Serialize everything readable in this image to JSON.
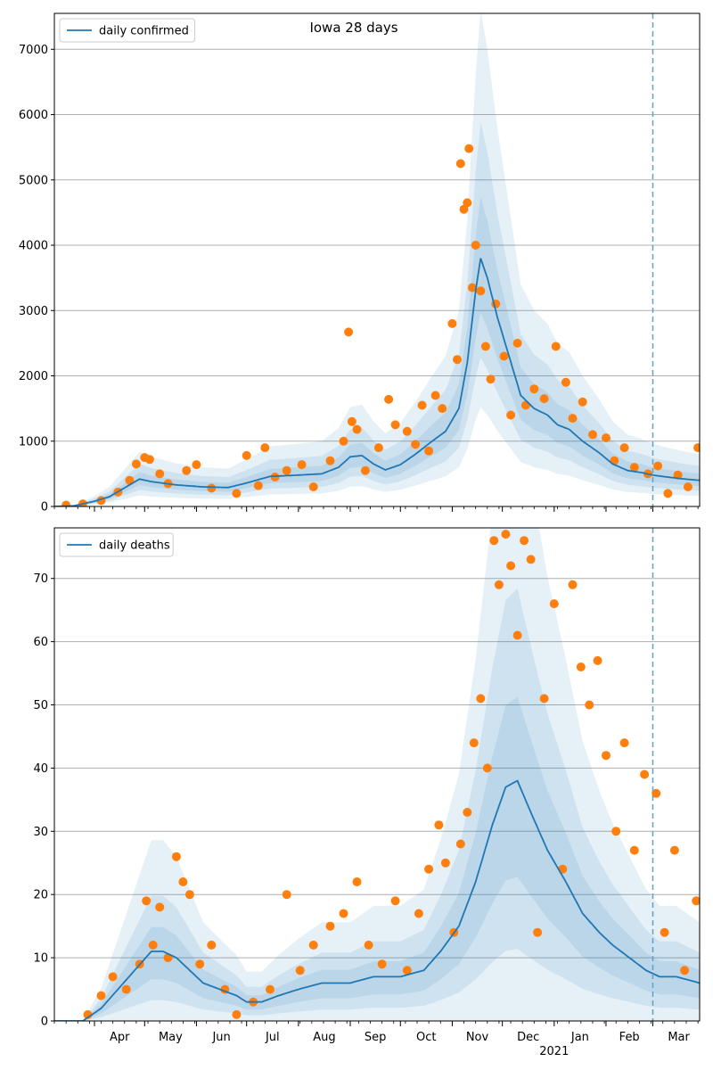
{
  "chart_data": [
    {
      "type": "line",
      "title": "Iowa 28 days",
      "legend": {
        "entries": [
          "daily confirmed"
        ],
        "placement": "top-left"
      },
      "ylim": [
        0,
        7550
      ],
      "yticks": [
        0,
        1000,
        2000,
        3000,
        4000,
        5000,
        6000,
        7000
      ],
      "grid": "horizontal",
      "forecast_start": "2021-03-01",
      "colors": {
        "line": "#1f77b4",
        "points": "#ff7f0e",
        "band": "#1f77b4",
        "vline": "#5fa2c9"
      },
      "series": [
        {
          "name": "daily confirmed",
          "anchors": [
            [
              "2020-03-08",
              0
            ],
            [
              "2020-03-20",
              10
            ],
            [
              "2020-04-01",
              80
            ],
            [
              "2020-04-10",
              150
            ],
            [
              "2020-04-20",
              300
            ],
            [
              "2020-04-28",
              420
            ],
            [
              "2020-05-05",
              380
            ],
            [
              "2020-05-20",
              330
            ],
            [
              "2020-06-05",
              300
            ],
            [
              "2020-06-20",
              290
            ],
            [
              "2020-07-01",
              360
            ],
            [
              "2020-07-15",
              460
            ],
            [
              "2020-08-01",
              480
            ],
            [
              "2020-08-15",
              500
            ],
            [
              "2020-08-25",
              600
            ],
            [
              "2020-09-01",
              760
            ],
            [
              "2020-09-08",
              780
            ],
            [
              "2020-09-15",
              650
            ],
            [
              "2020-09-22",
              560
            ],
            [
              "2020-10-01",
              640
            ],
            [
              "2020-10-10",
              800
            ],
            [
              "2020-10-20",
              1000
            ],
            [
              "2020-10-28",
              1150
            ],
            [
              "2020-11-05",
              1500
            ],
            [
              "2020-11-10",
              2200
            ],
            [
              "2020-11-15",
              3300
            ],
            [
              "2020-11-18",
              3800
            ],
            [
              "2020-11-22",
              3500
            ],
            [
              "2020-11-28",
              2900
            ],
            [
              "2020-12-05",
              2300
            ],
            [
              "2020-12-12",
              1700
            ],
            [
              "2020-12-20",
              1500
            ],
            [
              "2020-12-28",
              1400
            ],
            [
              "2021-01-03",
              1250
            ],
            [
              "2021-01-10",
              1180
            ],
            [
              "2021-01-18",
              1000
            ],
            [
              "2021-01-28",
              820
            ],
            [
              "2021-02-05",
              650
            ],
            [
              "2021-02-14",
              550
            ],
            [
              "2021-02-22",
              520
            ],
            [
              "2021-03-01",
              480
            ],
            [
              "2021-03-10",
              450
            ],
            [
              "2021-03-20",
              420
            ],
            [
              "2021-03-29",
              400
            ]
          ],
          "observed": [
            [
              "2020-03-15",
              20
            ],
            [
              "2020-03-25",
              40
            ],
            [
              "2020-04-05",
              90
            ],
            [
              "2020-04-15",
              220
            ],
            [
              "2020-04-22",
              400
            ],
            [
              "2020-04-26",
              650
            ],
            [
              "2020-05-01",
              750
            ],
            [
              "2020-05-04",
              720
            ],
            [
              "2020-05-10",
              500
            ],
            [
              "2020-05-15",
              350
            ],
            [
              "2020-05-26",
              550
            ],
            [
              "2020-06-01",
              640
            ],
            [
              "2020-06-10",
              280
            ],
            [
              "2020-06-25",
              200
            ],
            [
              "2020-07-01",
              780
            ],
            [
              "2020-07-08",
              320
            ],
            [
              "2020-07-12",
              900
            ],
            [
              "2020-07-18",
              450
            ],
            [
              "2020-07-25",
              550
            ],
            [
              "2020-08-03",
              640
            ],
            [
              "2020-08-10",
              300
            ],
            [
              "2020-08-20",
              700
            ],
            [
              "2020-08-28",
              1000
            ],
            [
              "2020-08-31",
              2670
            ],
            [
              "2020-09-02",
              1300
            ],
            [
              "2020-09-05",
              1180
            ],
            [
              "2020-09-10",
              550
            ],
            [
              "2020-09-18",
              900
            ],
            [
              "2020-09-24",
              1640
            ],
            [
              "2020-09-28",
              1250
            ],
            [
              "2020-10-05",
              1150
            ],
            [
              "2020-10-10",
              950
            ],
            [
              "2020-10-14",
              1550
            ],
            [
              "2020-10-18",
              850
            ],
            [
              "2020-10-22",
              1700
            ],
            [
              "2020-10-26",
              1500
            ],
            [
              "2020-11-01",
              2800
            ],
            [
              "2020-11-04",
              2250
            ],
            [
              "2020-11-06",
              5250
            ],
            [
              "2020-11-08",
              4550
            ],
            [
              "2020-11-10",
              4650
            ],
            [
              "2020-11-11",
              5480
            ],
            [
              "2020-11-13",
              3350
            ],
            [
              "2020-11-15",
              4000
            ],
            [
              "2020-11-18",
              3300
            ],
            [
              "2020-11-21",
              2450
            ],
            [
              "2020-11-24",
              1950
            ],
            [
              "2020-11-27",
              3100
            ],
            [
              "2020-12-02",
              2300
            ],
            [
              "2020-12-06",
              1400
            ],
            [
              "2020-12-10",
              2500
            ],
            [
              "2020-12-15",
              1550
            ],
            [
              "2020-12-20",
              1800
            ],
            [
              "2020-12-26",
              1650
            ],
            [
              "2021-01-02",
              2450
            ],
            [
              "2021-01-08",
              1900
            ],
            [
              "2021-01-12",
              1350
            ],
            [
              "2021-01-18",
              1600
            ],
            [
              "2021-01-24",
              1100
            ],
            [
              "2021-02-01",
              1050
            ],
            [
              "2021-02-06",
              700
            ],
            [
              "2021-02-12",
              900
            ],
            [
              "2021-02-18",
              600
            ],
            [
              "2021-02-26",
              500
            ],
            [
              "2021-03-04",
              620
            ],
            [
              "2021-03-10",
              200
            ],
            [
              "2021-03-16",
              480
            ],
            [
              "2021-03-22",
              300
            ],
            [
              "2021-03-28",
              900
            ]
          ],
          "ci": [
            {
              "level": "outer",
              "scale": [
                0.4,
                2.0
              ]
            },
            {
              "level": "mid",
              "scale": [
                0.6,
                1.55
              ]
            },
            {
              "level": "inner",
              "scale": [
                0.78,
                1.25
              ]
            }
          ]
        }
      ]
    },
    {
      "type": "line",
      "title": "",
      "legend": {
        "entries": [
          "daily deaths"
        ],
        "placement": "top-left"
      },
      "ylim": [
        0,
        78
      ],
      "yticks": [
        0,
        10,
        20,
        30,
        40,
        50,
        60,
        70
      ],
      "grid": "horizontal",
      "forecast_start": "2021-03-01",
      "colors": {
        "line": "#1f77b4",
        "points": "#ff7f0e",
        "band": "#1f77b4",
        "vline": "#5fa2c9"
      },
      "x_tick_labels": [
        "Apr",
        "May",
        "Jun",
        "Jul",
        "Aug",
        "Sep",
        "Oct",
        "Nov",
        "Dec",
        "Jan",
        "Feb",
        "Mar"
      ],
      "x_year_label": "2021",
      "series": [
        {
          "name": "daily deaths",
          "anchors": [
            [
              "2020-03-08",
              0
            ],
            [
              "2020-03-25",
              0
            ],
            [
              "2020-04-05",
              2
            ],
            [
              "2020-04-15",
              5
            ],
            [
              "2020-04-25",
              8
            ],
            [
              "2020-05-05",
              11
            ],
            [
              "2020-05-12",
              11
            ],
            [
              "2020-05-20",
              10
            ],
            [
              "2020-05-28",
              8
            ],
            [
              "2020-06-05",
              6
            ],
            [
              "2020-06-15",
              5
            ],
            [
              "2020-06-25",
              4
            ],
            [
              "2020-07-01",
              3
            ],
            [
              "2020-07-10",
              3
            ],
            [
              "2020-07-20",
              4
            ],
            [
              "2020-08-01",
              5
            ],
            [
              "2020-08-15",
              6
            ],
            [
              "2020-09-01",
              6
            ],
            [
              "2020-09-15",
              7
            ],
            [
              "2020-10-01",
              7
            ],
            [
              "2020-10-15",
              8
            ],
            [
              "2020-10-25",
              11
            ],
            [
              "2020-11-05",
              15
            ],
            [
              "2020-11-15",
              22
            ],
            [
              "2020-11-25",
              31
            ],
            [
              "2020-12-03",
              37
            ],
            [
              "2020-12-10",
              38
            ],
            [
              "2020-12-18",
              33
            ],
            [
              "2020-12-28",
              27
            ],
            [
              "2021-01-08",
              22
            ],
            [
              "2021-01-18",
              17
            ],
            [
              "2021-01-28",
              14
            ],
            [
              "2021-02-05",
              12
            ],
            [
              "2021-02-15",
              10
            ],
            [
              "2021-02-25",
              8
            ],
            [
              "2021-03-05",
              7
            ],
            [
              "2021-03-15",
              7
            ],
            [
              "2021-03-29",
              6
            ]
          ],
          "observed": [
            [
              "2020-03-28",
              1
            ],
            [
              "2020-04-05",
              4
            ],
            [
              "2020-04-12",
              7
            ],
            [
              "2020-04-20",
              5
            ],
            [
              "2020-04-28",
              9
            ],
            [
              "2020-05-02",
              19
            ],
            [
              "2020-05-06",
              12
            ],
            [
              "2020-05-10",
              18
            ],
            [
              "2020-05-15",
              10
            ],
            [
              "2020-05-20",
              26
            ],
            [
              "2020-05-24",
              22
            ],
            [
              "2020-05-28",
              20
            ],
            [
              "2020-06-03",
              9
            ],
            [
              "2020-06-10",
              12
            ],
            [
              "2020-06-18",
              5
            ],
            [
              "2020-06-25",
              1
            ],
            [
              "2020-07-05",
              3
            ],
            [
              "2020-07-15",
              5
            ],
            [
              "2020-07-25",
              20
            ],
            [
              "2020-08-02",
              8
            ],
            [
              "2020-08-10",
              12
            ],
            [
              "2020-08-20",
              15
            ],
            [
              "2020-08-28",
              17
            ],
            [
              "2020-09-05",
              22
            ],
            [
              "2020-09-12",
              12
            ],
            [
              "2020-09-20",
              9
            ],
            [
              "2020-09-28",
              19
            ],
            [
              "2020-10-05",
              8
            ],
            [
              "2020-10-12",
              17
            ],
            [
              "2020-10-18",
              24
            ],
            [
              "2020-10-24",
              31
            ],
            [
              "2020-10-28",
              25
            ],
            [
              "2020-11-02",
              14
            ],
            [
              "2020-11-06",
              28
            ],
            [
              "2020-11-10",
              33
            ],
            [
              "2020-11-14",
              44
            ],
            [
              "2020-11-18",
              51
            ],
            [
              "2020-11-22",
              40
            ],
            [
              "2020-11-26",
              76
            ],
            [
              "2020-11-29",
              69
            ],
            [
              "2020-12-03",
              77
            ],
            [
              "2020-12-06",
              72
            ],
            [
              "2020-12-10",
              61
            ],
            [
              "2020-12-14",
              76
            ],
            [
              "2020-12-18",
              73
            ],
            [
              "2020-12-22",
              14
            ],
            [
              "2020-12-26",
              51
            ],
            [
              "2021-01-01",
              66
            ],
            [
              "2021-01-06",
              24
            ],
            [
              "2021-01-12",
              69
            ],
            [
              "2021-01-17",
              56
            ],
            [
              "2021-01-22",
              50
            ],
            [
              "2021-01-27",
              57
            ],
            [
              "2021-02-01",
              42
            ],
            [
              "2021-02-07",
              30
            ],
            [
              "2021-02-12",
              44
            ],
            [
              "2021-02-18",
              27
            ],
            [
              "2021-02-24",
              39
            ],
            [
              "2021-03-03",
              36
            ],
            [
              "2021-03-08",
              14
            ],
            [
              "2021-03-14",
              27
            ],
            [
              "2021-03-20",
              8
            ],
            [
              "2021-03-27",
              19
            ]
          ],
          "ci": [
            {
              "level": "outer",
              "scale": [
                0.0,
                2.6
              ]
            },
            {
              "level": "mid",
              "scale": [
                0.3,
                1.8
              ]
            },
            {
              "level": "inner",
              "scale": [
                0.6,
                1.35
              ]
            }
          ]
        }
      ]
    }
  ]
}
